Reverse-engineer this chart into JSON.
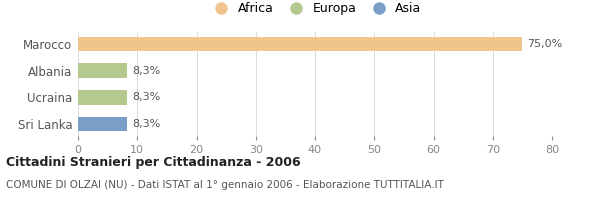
{
  "categories": [
    "Marocco",
    "Albania",
    "Ucraina",
    "Sri Lanka"
  ],
  "values": [
    75.0,
    8.3,
    8.3,
    8.3
  ],
  "labels": [
    "75,0%",
    "8,3%",
    "8,3%",
    "8,3%"
  ],
  "colors": [
    "#f2c48d",
    "#b5c98e",
    "#b5c98e",
    "#7b9ec8"
  ],
  "legend": [
    {
      "label": "Africa",
      "color": "#f2c48d"
    },
    {
      "label": "Europa",
      "color": "#b5c98e"
    },
    {
      "label": "Asia",
      "color": "#7b9ec8"
    }
  ],
  "xlim": [
    0,
    80
  ],
  "xticks": [
    0,
    10,
    20,
    30,
    40,
    50,
    60,
    70,
    80
  ],
  "title": "Cittadini Stranieri per Cittadinanza - 2006",
  "subtitle": "COMUNE DI OLZAI (NU) - Dati ISTAT al 1° gennaio 2006 - Elaborazione TUTTITALIA.IT",
  "background_color": "#ffffff",
  "bar_height": 0.55,
  "label_fontsize": 8,
  "ytick_fontsize": 8.5,
  "xtick_fontsize": 8,
  "title_fontsize": 9,
  "subtitle_fontsize": 7.5
}
